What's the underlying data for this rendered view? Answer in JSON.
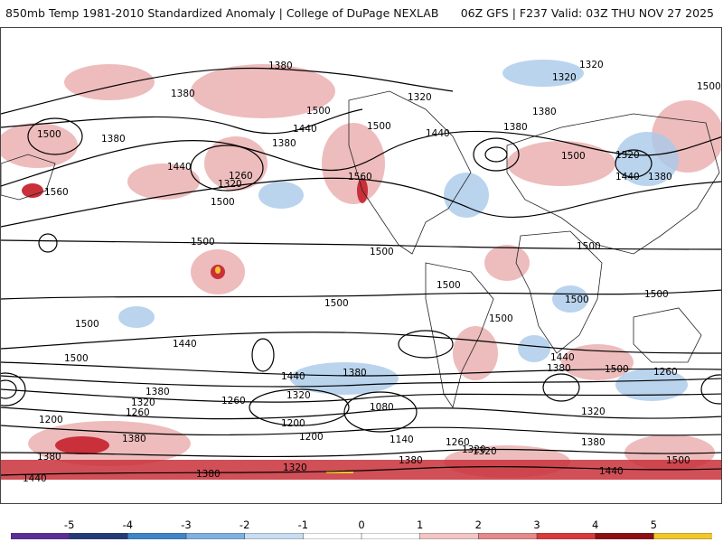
{
  "header": {
    "title_left": "850mb Temp 1981-2010 Standardized Anomaly | College of DuPage NEXLAB",
    "title_right": "06Z GFS | F237 Valid: 03Z THU NOV 27 2025"
  },
  "map": {
    "field": "850mb Temp 1981-2010 Standardized Anomaly",
    "positive_anomaly_color": "#d84a4a",
    "negative_anomaly_color": "#6aa6dd",
    "contour_color": "#000000",
    "contour_labels": [
      {
        "text": "1380"
      },
      {
        "text": "1320"
      },
      {
        "text": "1320"
      },
      {
        "text": "1380"
      },
      {
        "text": "1500"
      },
      {
        "text": "1320"
      },
      {
        "text": "1380"
      },
      {
        "text": "1500"
      },
      {
        "text": "1440"
      },
      {
        "text": "1500"
      },
      {
        "text": "1500"
      },
      {
        "text": "1380"
      },
      {
        "text": "1380"
      },
      {
        "text": "1500"
      },
      {
        "text": "1440"
      },
      {
        "text": "1380"
      },
      {
        "text": "1320"
      },
      {
        "text": "1260"
      },
      {
        "text": "1440"
      },
      {
        "text": "1560"
      },
      {
        "text": "1500"
      },
      {
        "text": "1560"
      },
      {
        "text": "1320"
      },
      {
        "text": "1440"
      },
      {
        "text": "1380"
      },
      {
        "text": "1500"
      },
      {
        "text": "1500"
      },
      {
        "text": "1500"
      },
      {
        "text": "1500"
      },
      {
        "text": "1500"
      },
      {
        "text": "1500"
      },
      {
        "text": "1500"
      },
      {
        "text": "1500"
      },
      {
        "text": "1500"
      },
      {
        "text": "1440"
      },
      {
        "text": "1500"
      },
      {
        "text": "1440"
      },
      {
        "text": "1440"
      },
      {
        "text": "1380"
      },
      {
        "text": "1380"
      },
      {
        "text": "1500"
      },
      {
        "text": "1260"
      },
      {
        "text": "1380"
      },
      {
        "text": "1320"
      },
      {
        "text": "1260"
      },
      {
        "text": "1320"
      },
      {
        "text": "1260"
      },
      {
        "text": "1200"
      },
      {
        "text": "1200"
      },
      {
        "text": "1080"
      },
      {
        "text": "1140"
      },
      {
        "text": "1200"
      },
      {
        "text": "1260"
      },
      {
        "text": "1320"
      },
      {
        "text": "1380"
      },
      {
        "text": "1320"
      },
      {
        "text": "1380"
      },
      {
        "text": "1380"
      },
      {
        "text": "1440"
      },
      {
        "text": "1500"
      },
      {
        "text": "1440"
      },
      {
        "text": "1380"
      },
      {
        "text": "1380"
      },
      {
        "text": "1320"
      },
      {
        "text": "1320"
      }
    ]
  },
  "colorbar": {
    "ticks": [
      "-5",
      "-4",
      "-3",
      "-2",
      "-1",
      "0",
      "1",
      "2",
      "3",
      "4",
      "5"
    ],
    "colors": [
      "#5b2d9a",
      "#233a7a",
      "#3f86c9",
      "#7fb0e0",
      "#c8dcf2",
      "#ffffff",
      "#ffffff",
      "#f2c6c6",
      "#e58a8a",
      "#d93a3a",
      "#8e0f14",
      "#f2c72b"
    ]
  }
}
